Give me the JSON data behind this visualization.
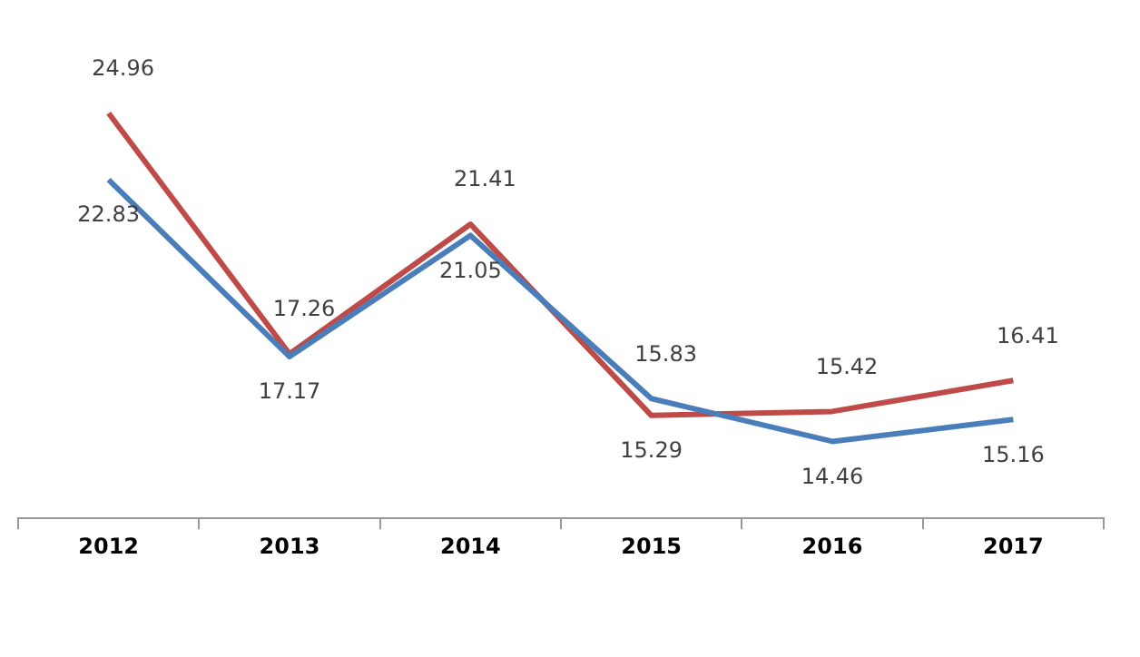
{
  "chart_data": {
    "type": "line",
    "categories": [
      "2012",
      "2013",
      "2014",
      "2015",
      "2016",
      "2017"
    ],
    "series": [
      {
        "color": "#4a7ebb",
        "values": [
          22.83,
          17.17,
          21.05,
          15.83,
          14.46,
          15.16
        ]
      },
      {
        "color": "#be4b48",
        "values": [
          24.96,
          17.26,
          21.41,
          15.29,
          15.42,
          16.41
        ]
      }
    ],
    "tick_labels": "x",
    "data_labels": true,
    "marker": "none",
    "line_style": "solid"
  }
}
